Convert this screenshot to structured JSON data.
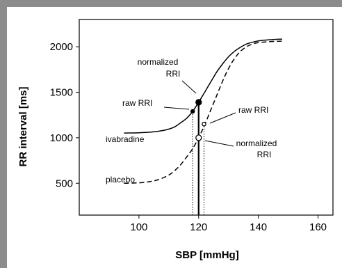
{
  "chart_data": {
    "type": "line",
    "xlabel": "SBP [mmHg]",
    "ylabel": "RR interval [ms]",
    "xlim": [
      80,
      165
    ],
    "ylim": [
      150,
      2300
    ],
    "x_ticks": [
      100,
      120,
      140,
      160
    ],
    "y_ticks": [
      500,
      1000,
      1500,
      2000
    ],
    "grid": false,
    "series": [
      {
        "name": "ivabradine",
        "style": "solid",
        "x": [
          95,
          100,
          105,
          108,
          110,
          112,
          114,
          116,
          118,
          120,
          122,
          124,
          126,
          128,
          130,
          132,
          134,
          136,
          138,
          140,
          143,
          146,
          148
        ],
        "y": [
          1052,
          1055,
          1065,
          1080,
          1095,
          1120,
          1165,
          1215,
          1290,
          1390,
          1500,
          1610,
          1720,
          1810,
          1890,
          1950,
          1995,
          2030,
          2050,
          2065,
          2075,
          2082,
          2085
        ]
      },
      {
        "name": "placebo",
        "style": "dashed",
        "x": [
          95,
          100,
          104,
          107,
          110,
          112,
          114,
          116,
          118,
          120,
          122,
          124,
          126,
          128,
          130,
          132,
          134,
          136,
          138,
          140,
          143,
          146,
          148
        ],
        "y": [
          500,
          505,
          520,
          545,
          590,
          640,
          705,
          790,
          880,
          1000,
          1140,
          1300,
          1460,
          1620,
          1760,
          1870,
          1950,
          2000,
          2030,
          2045,
          2055,
          2060,
          2062
        ]
      }
    ],
    "markers": [
      {
        "label": "raw RRI (ivabradine)",
        "x": 118,
        "y": 1290,
        "fill": "black",
        "size": "small"
      },
      {
        "label": "normalized RRI (ivabradine)",
        "x": 120,
        "y": 1390,
        "fill": "black",
        "size": "large"
      },
      {
        "label": "raw RRI (placebo)",
        "x": 121.8,
        "y": 1150,
        "fill": "white",
        "size": "small"
      },
      {
        "label": "normalized RRI (placebo)",
        "x": 120,
        "y": 1000,
        "fill": "white",
        "size": "large"
      }
    ],
    "vlines": [
      {
        "x": 118,
        "style": "dotted"
      },
      {
        "x": 120,
        "style": "solid"
      },
      {
        "x": 121.8,
        "style": "dotted"
      }
    ],
    "annotations": {
      "normalized_top": [
        "normalized",
        "RRI"
      ],
      "raw_left": "raw RRI",
      "ivabradine": "ivabradine",
      "raw_right": "raw RRI",
      "normalized_bottom": [
        "normalized",
        "RRI"
      ],
      "placebo": "placebo"
    }
  }
}
